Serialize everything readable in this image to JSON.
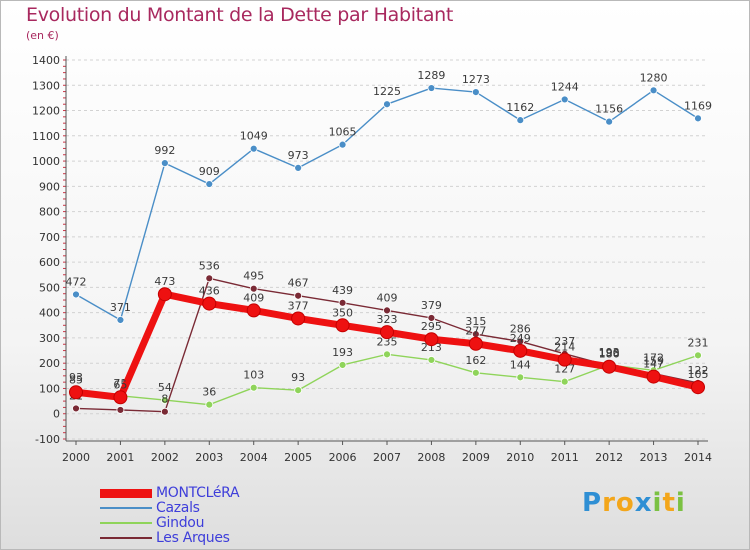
{
  "title": "Evolution du Montant de la Dette par Habitant",
  "subtitle": "(en €)",
  "brand": {
    "letters": [
      "P",
      "r",
      "o",
      "x",
      "i",
      "t",
      "i"
    ],
    "colors": [
      "#2f8fd4",
      "#f3a61b",
      "#f3a61b",
      "#2f8fd4",
      "#7bc142",
      "#f3a61b",
      "#7bc142"
    ]
  },
  "chart_data": {
    "type": "line",
    "title": "Evolution du Montant de la Dette par Habitant",
    "ylabel": "(en €)",
    "xlabel": "",
    "ylim": [
      -100,
      1400
    ],
    "yticks": [
      "-100",
      "0",
      "100",
      "200",
      "300",
      "400",
      "500",
      "600",
      "700",
      "800",
      "900",
      "1000",
      "1100",
      "1200",
      "1300",
      "1400"
    ],
    "categories": [
      "2000",
      "2001",
      "2002",
      "2003",
      "2004",
      "2005",
      "2006",
      "2007",
      "2008",
      "2009",
      "2010",
      "2011",
      "2012",
      "2013",
      "2014"
    ],
    "grid": "horizontal",
    "legend_position": "bottom-left",
    "series": [
      {
        "name": "Cazals",
        "color": "#4a8ec7",
        "values": [
          472,
          371,
          992,
          909,
          1049,
          973,
          1065,
          1225,
          1289,
          1273,
          1162,
          1244,
          1156,
          1280,
          1169
        ],
        "labels": [
          "472",
          "371",
          "992",
          "909",
          "1049",
          "973",
          "1065",
          "1225",
          "1289",
          "1273",
          "1162",
          "1244",
          "1156",
          "1280",
          "1169"
        ]
      },
      {
        "name": "Gindou",
        "color": "#8fd45a",
        "values": [
          93,
          71,
          54,
          36,
          103,
          93,
          193,
          235,
          213,
          162,
          144,
          127,
          193,
          172,
          231
        ],
        "labels": [
          "93",
          "71",
          "54",
          "36",
          "103",
          "93",
          "193",
          "235",
          "213",
          "162",
          "144",
          "127",
          "193",
          "172",
          "231"
        ]
      },
      {
        "name": "Les Arques",
        "color": "#7a2a35",
        "values": [
          21,
          15,
          8,
          536,
          495,
          467,
          439,
          409,
          379,
          315,
          286,
          237,
          190,
          159,
          122
        ],
        "labels": [
          "21",
          "15",
          "8",
          "536",
          "495",
          "467",
          "439",
          "409",
          "379",
          "315",
          "286",
          "237",
          "190",
          "159",
          "122"
        ]
      },
      {
        "name": "MONTCLéRA",
        "color": "#ee1111",
        "values": [
          85,
          65,
          473,
          436,
          409,
          377,
          350,
          323,
          295,
          277,
          249,
          214,
          186,
          147,
          105
        ],
        "labels": [
          "85",
          "65",
          "473",
          "436",
          "409",
          "377",
          "350",
          "323",
          "295",
          "277",
          "249",
          "214",
          "186",
          "147",
          "105"
        ]
      }
    ]
  },
  "legend": {
    "items": [
      {
        "label": "MONTCLéRA",
        "color": "#ee1111",
        "width": 9
      },
      {
        "label": "Cazals",
        "color": "#4a8ec7",
        "width": 2
      },
      {
        "label": "Gindou",
        "color": "#8fd45a",
        "width": 2
      },
      {
        "label": "Les Arques",
        "color": "#7a2a35",
        "width": 2
      }
    ]
  }
}
